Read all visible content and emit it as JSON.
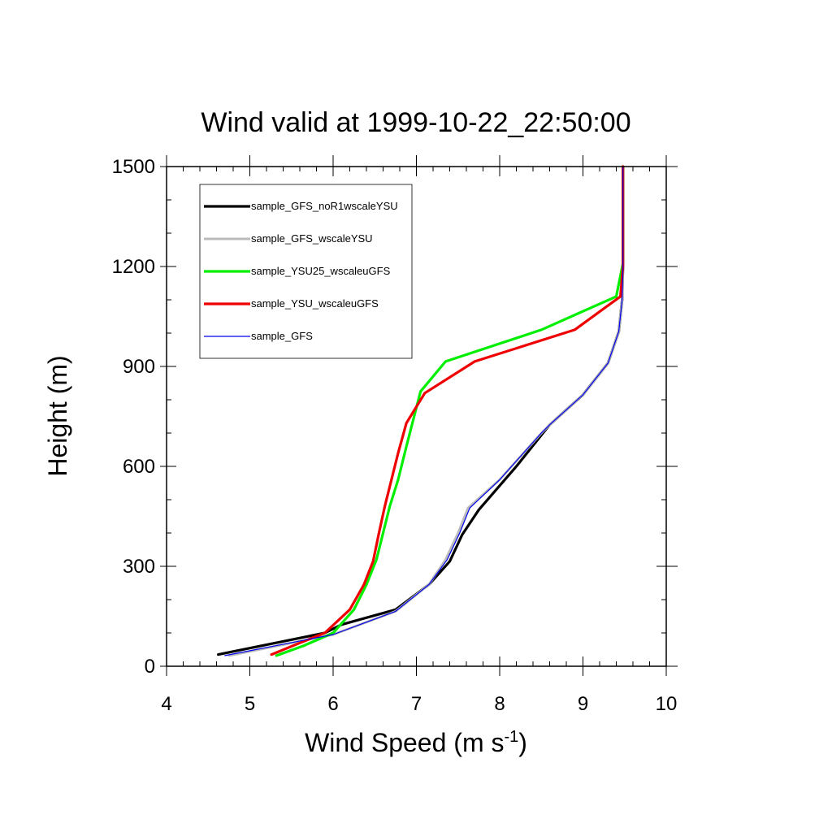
{
  "chart_data": {
    "type": "line",
    "title": "Wind valid at 1999-10-22_22:50:00",
    "xlabel": "Wind Speed (m s",
    "xlabel_superscript": "-1",
    "xlabel_suffix": ")",
    "ylabel": "Height (m)",
    "xlim": [
      4,
      10
    ],
    "ylim": [
      0,
      1500
    ],
    "xticks": [
      4,
      5,
      6,
      7,
      8,
      9,
      10
    ],
    "yticks": [
      0,
      300,
      600,
      900,
      1200,
      1500
    ],
    "grid": false,
    "legend_position": "top-left",
    "series": [
      {
        "name": "sample_GFS_noR1wscaleYSU",
        "color": "#000000",
        "width": 3.2,
        "points": [
          [
            4.62,
            35
          ],
          [
            5.9,
            100
          ],
          [
            6.1,
            125
          ],
          [
            6.75,
            170
          ],
          [
            7.15,
            245
          ],
          [
            7.4,
            315
          ],
          [
            7.55,
            395
          ],
          [
            7.75,
            470
          ],
          [
            8.2,
            600
          ],
          [
            8.6,
            725
          ],
          [
            9.0,
            815
          ],
          [
            9.3,
            910
          ],
          [
            9.43,
            1005
          ],
          [
            9.47,
            1100
          ],
          [
            9.48,
            1200
          ],
          [
            9.48,
            1500
          ]
        ]
      },
      {
        "name": "sample_GFS_wscaleYSU",
        "color": "#bbbbbb",
        "width": 3,
        "points": [
          [
            4.75,
            32
          ],
          [
            6.0,
            95
          ],
          [
            6.75,
            165
          ],
          [
            7.15,
            245
          ],
          [
            7.35,
            320
          ],
          [
            7.5,
            400
          ],
          [
            7.62,
            475
          ],
          [
            8.0,
            560
          ],
          [
            8.5,
            700
          ],
          [
            8.6,
            725
          ],
          [
            9.0,
            815
          ],
          [
            9.3,
            910
          ],
          [
            9.43,
            1005
          ],
          [
            9.47,
            1100
          ],
          [
            9.48,
            1200
          ],
          [
            9.48,
            1500
          ]
        ]
      },
      {
        "name": "sample_YSU25_wscaleuGFS",
        "color": "#00ee00",
        "width": 3.2,
        "points": [
          [
            5.32,
            32
          ],
          [
            5.65,
            62
          ],
          [
            6.0,
            100
          ],
          [
            6.25,
            170
          ],
          [
            6.4,
            245
          ],
          [
            6.52,
            320
          ],
          [
            6.6,
            400
          ],
          [
            6.68,
            480
          ],
          [
            6.78,
            560
          ],
          [
            6.88,
            660
          ],
          [
            7.05,
            825
          ],
          [
            7.35,
            915
          ],
          [
            8.5,
            1010
          ],
          [
            9.4,
            1110
          ],
          [
            9.48,
            1210
          ],
          [
            9.48,
            1500
          ]
        ]
      },
      {
        "name": "sample_YSU_wscaleuGFS",
        "color": "#ee0000",
        "width": 3.2,
        "points": [
          [
            5.26,
            35
          ],
          [
            5.6,
            70
          ],
          [
            5.9,
            100
          ],
          [
            6.2,
            170
          ],
          [
            6.37,
            245
          ],
          [
            6.48,
            315
          ],
          [
            6.55,
            400
          ],
          [
            6.62,
            480
          ],
          [
            6.7,
            560
          ],
          [
            6.78,
            640
          ],
          [
            6.88,
            730
          ],
          [
            7.1,
            820
          ],
          [
            7.7,
            915
          ],
          [
            8.9,
            1010
          ],
          [
            9.45,
            1110
          ],
          [
            9.48,
            1200
          ],
          [
            9.48,
            1500
          ]
        ]
      },
      {
        "name": "sample_GFS",
        "color": "#0000ee",
        "width": 1.2,
        "points": [
          [
            4.7,
            32
          ],
          [
            6.0,
            95
          ],
          [
            6.75,
            165
          ],
          [
            7.15,
            245
          ],
          [
            7.37,
            320
          ],
          [
            7.52,
            400
          ],
          [
            7.64,
            475
          ],
          [
            8.0,
            560
          ],
          [
            8.5,
            700
          ],
          [
            8.6,
            725
          ],
          [
            9.0,
            815
          ],
          [
            9.3,
            910
          ],
          [
            9.43,
            1005
          ],
          [
            9.47,
            1100
          ],
          [
            9.48,
            1200
          ],
          [
            9.48,
            1500
          ]
        ]
      }
    ]
  }
}
